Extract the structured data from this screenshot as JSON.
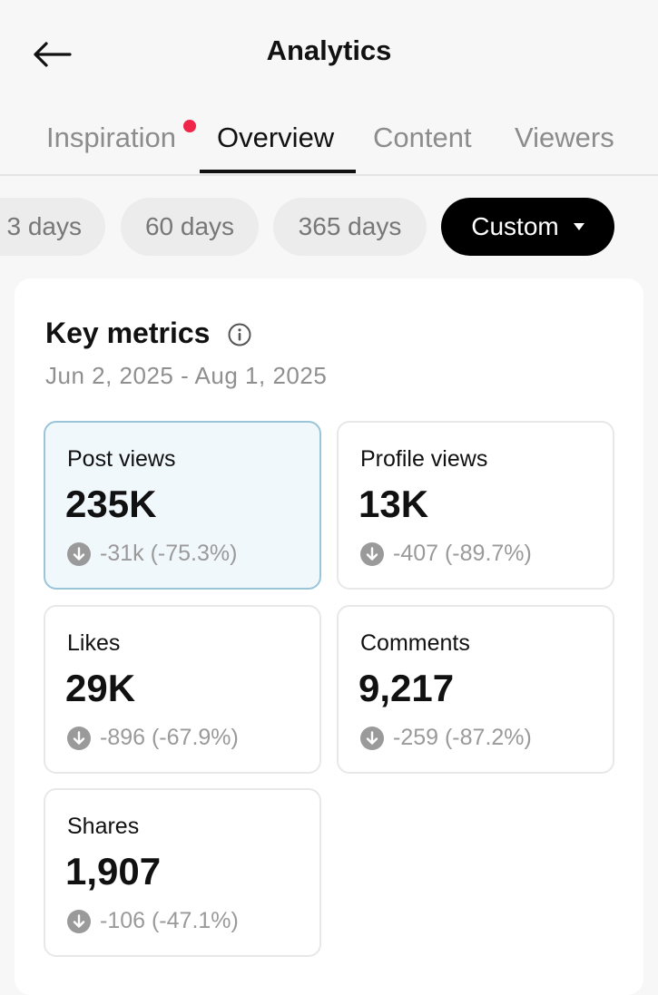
{
  "header": {
    "title": "Analytics",
    "back_icon": "back-arrow-icon"
  },
  "tabs": [
    {
      "label": "Inspiration",
      "has_notification_dot": true
    },
    {
      "label": "Overview",
      "active": true
    },
    {
      "label": "Content"
    },
    {
      "label": "Viewers"
    }
  ],
  "date_chips": [
    {
      "label": "3 days"
    },
    {
      "label": "60 days"
    },
    {
      "label": "365 days"
    },
    {
      "label": "Custom",
      "active": true,
      "icon": "caret-down-icon"
    }
  ],
  "key_metrics": {
    "title": "Key metrics",
    "info_icon": "info-icon",
    "date_range": "Jun 2, 2025 - Aug 1, 2025",
    "metrics": [
      {
        "label": "Post views",
        "value": "235K",
        "delta": "-31k (-75.3%)",
        "selected": true
      },
      {
        "label": "Profile views",
        "value": "13K",
        "delta": "-407 (-89.7%)"
      },
      {
        "label": "Likes",
        "value": "29K",
        "delta": "-896 (-67.9%)"
      },
      {
        "label": "Comments",
        "value": "9,217",
        "delta": "-259 (-87.2%)"
      },
      {
        "label": "Shares",
        "value": "1,907",
        "delta": "-106 (-47.1%)"
      }
    ]
  },
  "colors": {
    "notification_dot": "#f0254a",
    "selected_card_bg": "#f1f8fc",
    "selected_card_border": "#9ac5d9",
    "active_chip_bg": "#000000"
  }
}
